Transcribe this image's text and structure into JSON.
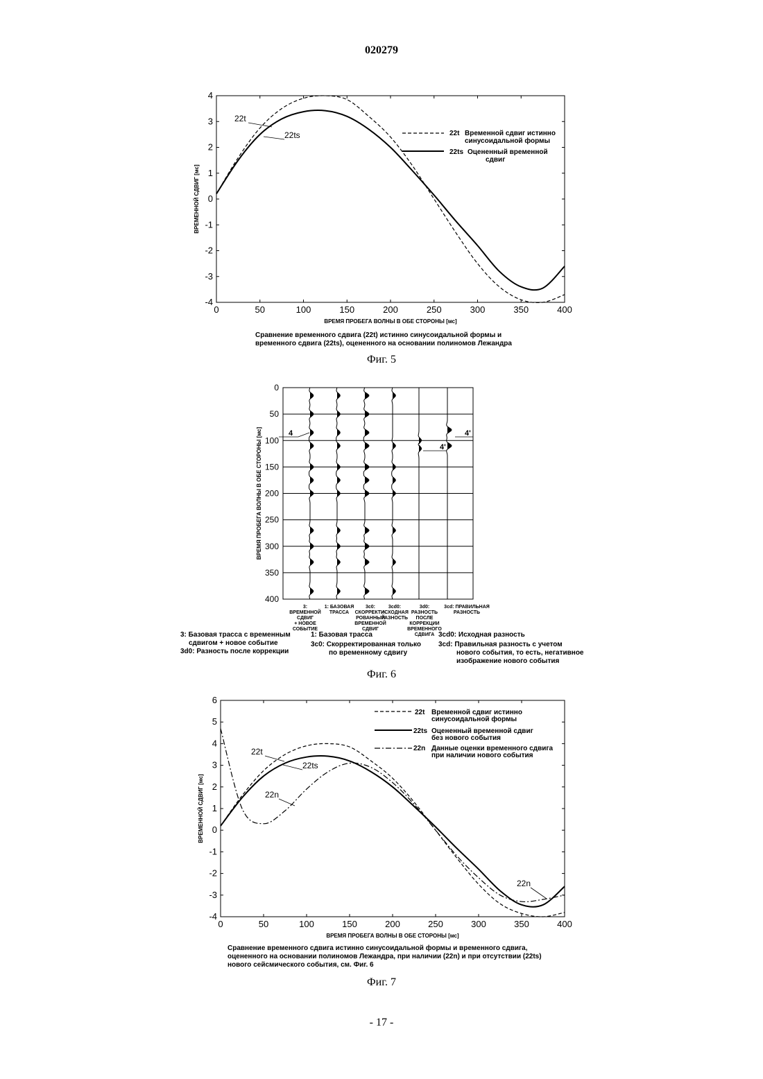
{
  "header": {
    "patent_number": "020279"
  },
  "footer": {
    "page": "- 17 -"
  },
  "figures": {
    "fig5": {
      "label": "Фиг. 5",
      "caption_lines": [
        "Сравнение временного сдвига (22t) истинно синусоидальной формы и",
        "временного сдвига (22ts), оцененного на основании полиномов Лежандра"
      ],
      "legend": [
        {
          "code": "22t",
          "lines": [
            "Временной сдвиг истинно",
            "синусоидальной формы"
          ]
        },
        {
          "code": "22ts",
          "lines": [
            "Оцененный временной",
            "сдвиг"
          ]
        }
      ],
      "annotations": [
        "22t",
        "22ts"
      ]
    },
    "fig6": {
      "label": "Фиг. 6",
      "ylabel": "ВРЕМЯ ПРОБЕГА ВОЛНЫ В ОБЕ СТОРОНЫ [мс]",
      "yticks": [
        "0",
        "50",
        "100",
        "150",
        "200",
        "250",
        "300",
        "350",
        "400"
      ],
      "trace_labels": [
        [
          "3:",
          "ВРЕМЕННОЙ СДВИГ",
          "+ НОВОЕ СОБЫТИЕ"
        ],
        [
          "1: БАЗОВАЯ",
          "ТРАССА"
        ],
        [
          "3c0:",
          "СКОРРЕКТИ-",
          "РОВАННЫЙ",
          "ВРЕМЕННОЙ СДВИГ"
        ],
        [
          "3cd0:",
          "ИСХОДНАЯ",
          "РАЗНОСТЬ"
        ],
        [
          "3d0:",
          "РАЗНОСТЬ ПОСЛЕ",
          "КОРРЕКЦИИ",
          "ВРЕМЕННОГО СДВИГА"
        ],
        [
          "3cd: ПРАВИЛЬНАЯ",
          "РАЗНОСТЬ"
        ]
      ],
      "annotations": [
        "4",
        "4'",
        "4'"
      ],
      "key_col1": [
        [
          "3: Базовая трасса с временным",
          "сдвигом + новое событие"
        ],
        [
          "3d0:  Разность после коррекции"
        ]
      ],
      "key_col2": [
        [
          "1: Базовая трасса"
        ],
        [
          "3c0: Скорректированная только",
          "по временному сдвигу"
        ]
      ],
      "key_col3": [
        [
          "3cd0:  Исходная разность"
        ],
        [
          "3cd:  Правильная разность с учетом",
          "нового события, то есть, негативное",
          "изображение нового события"
        ]
      ]
    },
    "fig7": {
      "label": "Фиг. 7",
      "caption_lines": [
        "Сравнение временного сдвига истинно синусоидальной формы и временного сдвига,",
        "оцененного на основании полиномов Лежандра, при наличии (22n) и при отсутствии (22ts)",
        "нового сейсмического события, см. Фиг. 6"
      ],
      "legend": [
        {
          "code": "22t",
          "lines": [
            "Временной сдвиг истинно",
            "синусоидальной формы"
          ]
        },
        {
          "code": "22ts",
          "lines": [
            "Оцененный временной сдвиг",
            "без нового события"
          ]
        },
        {
          "code": "22n",
          "lines": [
            "Данные оценки временного сдвига",
            "при наличии нового события"
          ]
        }
      ],
      "annotations": [
        "22t",
        "22ts",
        "22n",
        "22n"
      ]
    }
  },
  "chart_data": [
    {
      "type": "line",
      "xlabel": "ВРЕМЯ ПРОБЕГА ВОЛНЫ В ОБЕ СТОРОНЫ [мс]",
      "ylabel": "ВРЕМЕННОЙ СДВИГ [мс]",
      "xlim": [
        0,
        400
      ],
      "ylim": [
        -4,
        4
      ],
      "xticks": [
        0,
        50,
        100,
        150,
        200,
        250,
        300,
        350,
        400
      ],
      "yticks": [
        -4,
        -3,
        -2,
        -1,
        0,
        1,
        2,
        3,
        4
      ],
      "x": [
        0,
        25,
        50,
        75,
        100,
        125,
        150,
        175,
        200,
        225,
        250,
        275,
        300,
        325,
        350,
        375,
        400
      ],
      "series": [
        {
          "name": "22t",
          "style": "dashed",
          "values": [
            0.2,
            1.6,
            2.75,
            3.5,
            3.9,
            4.0,
            3.85,
            3.2,
            2.4,
            1.3,
            0.0,
            -1.3,
            -2.5,
            -3.4,
            -3.9,
            -4.0,
            -3.7
          ]
        },
        {
          "name": "22ts",
          "style": "solid",
          "values": [
            0.2,
            1.5,
            2.5,
            3.1,
            3.38,
            3.42,
            3.2,
            2.7,
            2.0,
            1.1,
            0.15,
            -0.85,
            -1.8,
            -2.8,
            -3.4,
            -3.45,
            -2.6
          ]
        }
      ]
    },
    {
      "type": "line",
      "xlabel": "ВРЕМЯ ПРОБЕГА ВОЛНЫ В ОБЕ СТОРОНЫ [мс]",
      "ylabel": "ВРЕМЕННОЙ СДВИГ [мс]",
      "xlim": [
        0,
        400
      ],
      "ylim": [
        -4,
        6
      ],
      "xticks": [
        0,
        50,
        100,
        150,
        200,
        250,
        300,
        350,
        400
      ],
      "yticks": [
        -4,
        -3,
        -2,
        -1,
        0,
        1,
        2,
        3,
        4,
        5,
        6
      ],
      "x": [
        0,
        25,
        50,
        75,
        100,
        125,
        150,
        175,
        200,
        225,
        250,
        275,
        300,
        325,
        350,
        375,
        400
      ],
      "series": [
        {
          "name": "22t",
          "style": "dashed",
          "values": [
            0.2,
            1.6,
            2.75,
            3.5,
            3.9,
            4.0,
            3.85,
            3.2,
            2.4,
            1.3,
            0.0,
            -1.3,
            -2.5,
            -3.4,
            -3.85,
            -4.0,
            -3.8
          ]
        },
        {
          "name": "22ts",
          "style": "solid",
          "values": [
            0.2,
            1.5,
            2.5,
            3.1,
            3.38,
            3.42,
            3.2,
            2.7,
            2.0,
            1.1,
            0.15,
            -0.85,
            -1.8,
            -2.8,
            -3.45,
            -3.45,
            -2.6
          ]
        },
        {
          "name": "22n",
          "style": "dashdot",
          "values": [
            4.7,
            1.0,
            0.3,
            0.9,
            1.9,
            2.7,
            3.1,
            2.9,
            2.2,
            1.2,
            0.0,
            -1.2,
            -2.2,
            -3.0,
            -3.3,
            -3.2,
            -3.0
          ]
        }
      ]
    }
  ]
}
